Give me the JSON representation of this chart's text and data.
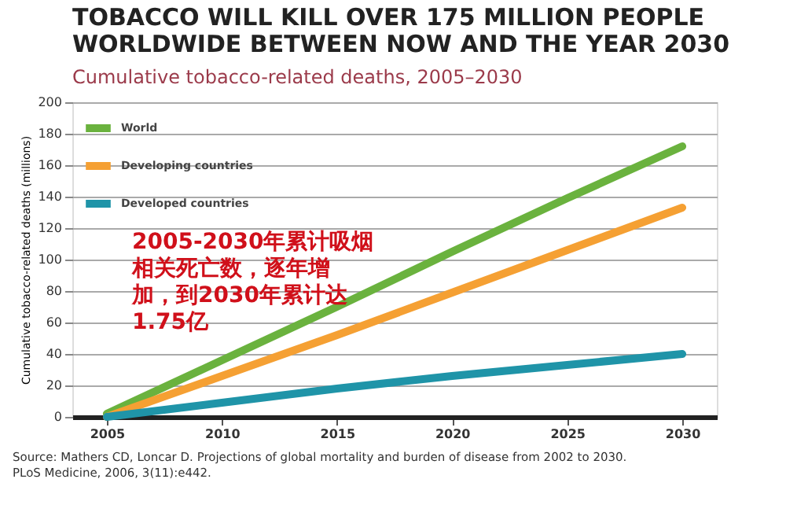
{
  "chart_data": {
    "type": "line",
    "title": "TOBACCO WILL KILL OVER 175 MILLION PEOPLE\nWORLDWIDE BETWEEN NOW AND THE YEAR 2030",
    "subtitle": "Cumulative tobacco-related deaths, 2005–2030",
    "ylabel": "Cumulative tobacco-related deaths (millions)",
    "x": [
      2005,
      2010,
      2015,
      2020,
      2025,
      2030
    ],
    "series": [
      {
        "name": "World",
        "color": "#6ab23e",
        "values": [
          2,
          36,
          70,
          105,
          139,
          172
        ]
      },
      {
        "name": "Developing countries",
        "color": "#f5a033",
        "values": [
          0,
          26,
          52,
          79,
          106,
          133
        ]
      },
      {
        "name": "Developed countries",
        "color": "#1f94a8",
        "values": [
          0,
          9,
          18,
          26,
          33,
          40
        ]
      }
    ],
    "xlim": [
      2003.5,
      2031.5
    ],
    "xticks": [
      2005,
      2010,
      2015,
      2020,
      2025,
      2030
    ],
    "ylim": [
      0,
      200
    ],
    "yticks": [
      0,
      20,
      40,
      60,
      80,
      100,
      120,
      140,
      160,
      180,
      200
    ],
    "grid": "y",
    "legend": "top left",
    "marker": "none",
    "line_style": "solid",
    "annotations": [
      "2005-2030年累计吸烟相关死亡数，逐年增加，到2030年累计达1.75亿",
      "Source: Mathers CD, Loncar D. Projections of global mortality and burden of disease from 2002 to 2030.\nPLoS Medicine, 2006, 3(11):e442."
    ]
  }
}
